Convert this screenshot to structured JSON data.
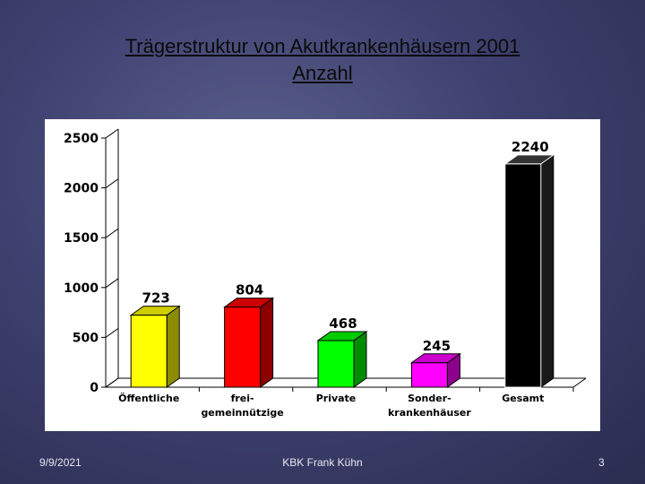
{
  "slide": {
    "title_line1": "Trägerstruktur von Akutkrankenhäusern 2001",
    "title_line2": "Anzahl",
    "footer_date": "9/9/2021",
    "footer_author": "KBK Frank Kühn",
    "footer_page": "3"
  },
  "chart_data": {
    "type": "bar",
    "categories": [
      [
        "Öffentliche"
      ],
      [
        "frei-",
        "gemeinnützige"
      ],
      [
        "Private"
      ],
      [
        "Sonder-",
        "krankenhäuser"
      ],
      [
        "Gesamt"
      ]
    ],
    "values": [
      723,
      804,
      468,
      245,
      2240
    ],
    "data_labels": [
      "723",
      "804",
      "468",
      "245",
      "2240"
    ],
    "colors": [
      "#ffff00",
      "#ff0000",
      "#00ff00",
      "#ff00ff",
      "#000000"
    ],
    "yticks": [
      "0",
      "500",
      "1000",
      "1500",
      "2000",
      "2500"
    ],
    "ylim": [
      0,
      2500
    ],
    "grid": false,
    "bar_style": "3d"
  }
}
